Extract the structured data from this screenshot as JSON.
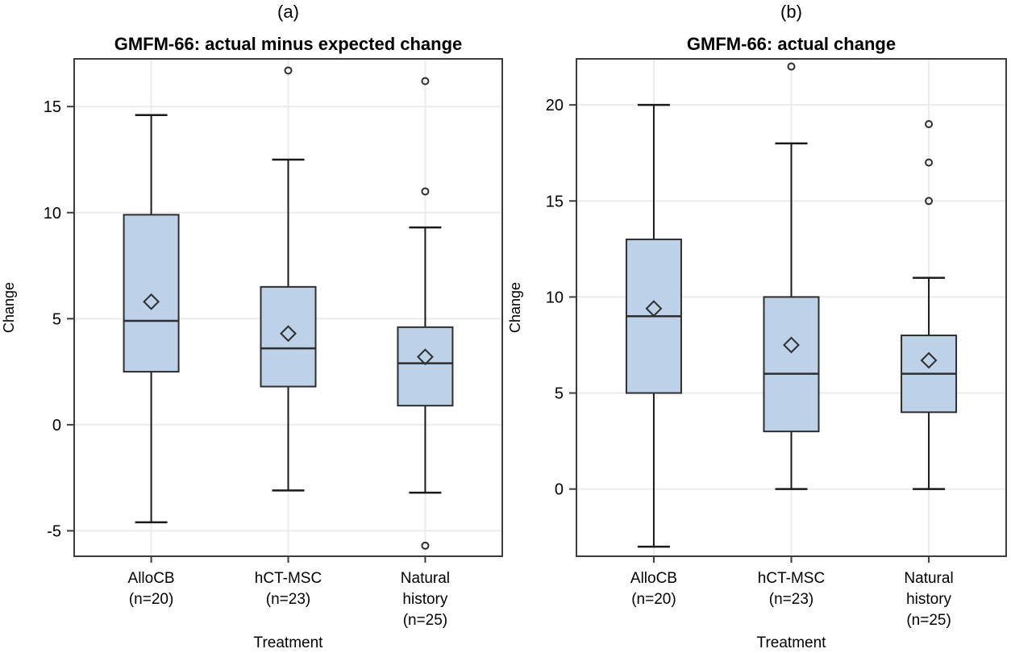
{
  "colors": {
    "background": "#ffffff",
    "box_fill": "#bdd1e9",
    "box_stroke": "#2e2e2e",
    "whisker_stroke": "#1a1a1a",
    "median_stroke": "#2e2e2e",
    "outlier_stroke": "#2e2e2e",
    "mean_stroke": "#2e2e2e",
    "gridline": "#ebebeb",
    "frame": "#3c3c3c",
    "text": "#000000"
  },
  "chart_data": [
    {
      "type": "boxplot",
      "panel_label": "(a)",
      "title": "GMFM-66: actual minus expected change",
      "xlabel": "Treatment",
      "ylabel": "Change",
      "ylim": [
        -6.2,
        17.25
      ],
      "yticks": [
        -5,
        0,
        5,
        10,
        15
      ],
      "ytick_labels": [
        "-5",
        "0",
        "5",
        "10",
        "15"
      ],
      "grid": true,
      "legend": "none",
      "categories": [
        {
          "name": "AlloCB (n=20)",
          "label_lines": [
            "AlloCB",
            "(n=20)"
          ]
        },
        {
          "name": "hCT-MSC (n=23)",
          "label_lines": [
            "hCT-MSC",
            "(n=23)"
          ]
        },
        {
          "name": "Natural history (n=25)",
          "label_lines": [
            "Natural",
            "history",
            "(n=25)"
          ]
        }
      ],
      "series": [
        {
          "category": "AlloCB (n=20)",
          "whisker_low": -4.6,
          "q1": 2.5,
          "median": 4.9,
          "q3": 9.9,
          "whisker_high": 14.6,
          "mean": 5.8,
          "outliers": []
        },
        {
          "category": "hCT-MSC (n=23)",
          "whisker_low": -3.1,
          "q1": 1.8,
          "median": 3.6,
          "q3": 6.5,
          "whisker_high": 12.5,
          "mean": 4.3,
          "outliers": [
            16.7
          ]
        },
        {
          "category": "Natural history (n=25)",
          "whisker_low": -3.2,
          "q1": 0.9,
          "median": 2.9,
          "q3": 4.6,
          "whisker_high": 9.3,
          "mean": 3.2,
          "outliers": [
            16.2,
            11.0,
            -5.7
          ]
        }
      ]
    },
    {
      "type": "boxplot",
      "panel_label": "(b)",
      "title": "GMFM-66: actual change",
      "xlabel": "Treatment",
      "ylabel": "Change",
      "ylim": [
        -3.5,
        22.4
      ],
      "yticks": [
        0,
        5,
        10,
        15,
        20
      ],
      "ytick_labels": [
        "0",
        "5",
        "10",
        "15",
        "20"
      ],
      "grid": true,
      "legend": "none",
      "categories": [
        {
          "name": "AlloCB (n=20)",
          "label_lines": [
            "AlloCB",
            "(n=20)"
          ]
        },
        {
          "name": "hCT-MSC (n=23)",
          "label_lines": [
            "hCT-MSC",
            "(n=23)"
          ]
        },
        {
          "name": "Natural history (n=25)",
          "label_lines": [
            "Natural",
            "history",
            "(n=25)"
          ]
        }
      ],
      "series": [
        {
          "category": "AlloCB (n=20)",
          "whisker_low": -3.0,
          "q1": 5.0,
          "median": 9.0,
          "q3": 13.0,
          "whisker_high": 20.0,
          "mean": 9.4,
          "outliers": []
        },
        {
          "category": "hCT-MSC (n=23)",
          "whisker_low": 0.0,
          "q1": 3.0,
          "median": 6.0,
          "q3": 10.0,
          "whisker_high": 18.0,
          "mean": 7.5,
          "outliers": [
            22.0
          ]
        },
        {
          "category": "Natural history (n=25)",
          "whisker_low": 0.0,
          "q1": 4.0,
          "median": 6.0,
          "q3": 8.0,
          "whisker_high": 11.0,
          "mean": 6.7,
          "outliers": [
            15.0,
            17.0,
            19.0
          ]
        }
      ]
    }
  ]
}
